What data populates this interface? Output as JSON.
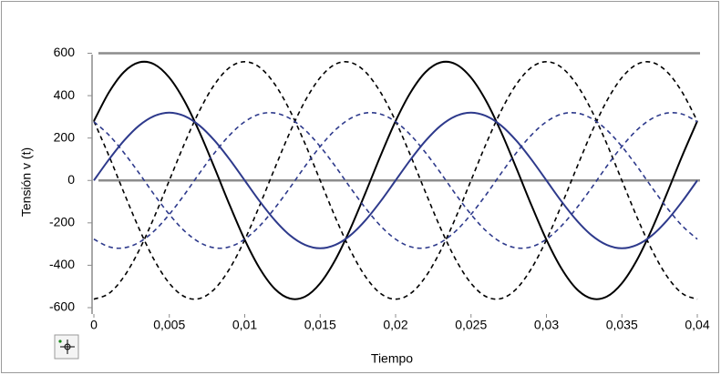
{
  "chart_data": {
    "type": "line",
    "xlabel": "Tiempo",
    "ylabel": "Tensión v (t)",
    "x": [
      0,
      0.001,
      0.002,
      0.003,
      0.004,
      0.005,
      0.006,
      0.007,
      0.008,
      0.009,
      0.01,
      0.011,
      0.012,
      0.013,
      0.014,
      0.015,
      0.016,
      0.017,
      0.018,
      0.019,
      0.02,
      0.021,
      0.022,
      0.023,
      0.024,
      0.025,
      0.026,
      0.027,
      0.028,
      0.029,
      0.03,
      0.031,
      0.032,
      0.033,
      0.034,
      0.035,
      0.036,
      0.037,
      0.038,
      0.039,
      0.04
    ],
    "series": [
      {
        "color": "#000000",
        "style": "solid",
        "values": [
          280,
          416,
          512,
          557,
          548,
          485,
          375,
          228,
          59,
          -116,
          -280,
          -416,
          -512,
          -557,
          -548,
          -485,
          -375,
          -228,
          -59,
          116,
          280,
          416,
          512,
          557,
          548,
          485,
          375,
          228,
          59,
          -116,
          -280,
          -416,
          -512,
          -557,
          -548,
          -485,
          -375,
          -228,
          -59,
          116,
          280
        ]
      },
      {
        "color": "#000000",
        "style": "dashed",
        "values": [
          -560,
          -533,
          -453,
          -329,
          -173,
          0,
          173,
          329,
          453,
          533,
          560,
          533,
          453,
          329,
          173,
          0,
          -173,
          -329,
          -453,
          -533,
          -560,
          -533,
          -453,
          -329,
          -173,
          0,
          173,
          329,
          453,
          533,
          560,
          533,
          453,
          329,
          173,
          0,
          -173,
          -329,
          -453,
          -533,
          -560
        ]
      },
      {
        "color": "#000000",
        "style": "dashed",
        "values": [
          280,
          116,
          -59,
          -228,
          -375,
          -485,
          -548,
          -557,
          -512,
          -416,
          -280,
          -116,
          59,
          228,
          375,
          485,
          548,
          557,
          512,
          416,
          280,
          116,
          -59,
          -228,
          -375,
          -485,
          -548,
          -557,
          -512,
          -416,
          -280,
          -116,
          59,
          228,
          375,
          485,
          548,
          557,
          512,
          416,
          280
        ]
      },
      {
        "color": "#2e3a8c",
        "style": "solid",
        "values": [
          0,
          99,
          188,
          259,
          304,
          320,
          304,
          259,
          188,
          99,
          0,
          -99,
          -188,
          -259,
          -304,
          -320,
          -304,
          -259,
          -188,
          -99,
          0,
          99,
          188,
          259,
          304,
          320,
          304,
          259,
          188,
          99,
          0,
          -99,
          -188,
          -259,
          -304,
          -320,
          -304,
          -259,
          -188,
          -99,
          0
        ]
      },
      {
        "color": "#2e3a8c",
        "style": "dashed",
        "values": [
          277,
          214,
          130,
          34,
          -67,
          -160,
          -238,
          -292,
          -318,
          -313,
          -277,
          -214,
          -130,
          -34,
          67,
          160,
          238,
          292,
          318,
          313,
          277,
          214,
          130,
          34,
          -67,
          -160,
          -238,
          -292,
          -318,
          -313,
          -277,
          -214,
          -130,
          -34,
          67,
          160,
          238,
          292,
          318,
          313,
          277
        ]
      },
      {
        "color": "#2e3a8c",
        "style": "dashed",
        "values": [
          -277,
          -313,
          -318,
          -292,
          -238,
          -160,
          -67,
          34,
          130,
          214,
          277,
          313,
          318,
          292,
          238,
          160,
          67,
          -34,
          -130,
          -214,
          -277,
          -313,
          -318,
          -292,
          -238,
          -160,
          -67,
          34,
          130,
          214,
          277,
          313,
          318,
          292,
          238,
          160,
          67,
          -34,
          -130,
          -214,
          -277
        ]
      }
    ],
    "xlim": [
      0,
      0.04
    ],
    "xticks": [
      0,
      {
        "value": 0.005,
        "label": "0,005"
      },
      {
        "value": 0.01,
        "label": "0,01"
      },
      {
        "value": 0.015,
        "label": "0,015"
      },
      {
        "value": 0.02,
        "label": "0,02"
      },
      {
        "value": 0.025,
        "label": "0,025"
      },
      {
        "value": 0.03,
        "label": "0,03"
      },
      {
        "value": 0.035,
        "label": "0,035"
      },
      {
        "value": 0.04,
        "label": "0,04"
      }
    ],
    "ylim": [
      -630,
      615
    ],
    "yticks": [
      -600,
      -400,
      -200,
      0,
      200,
      400,
      600
    ],
    "reference_lines": [
      600,
      0
    ],
    "reference_color": "#8c8c8c"
  }
}
